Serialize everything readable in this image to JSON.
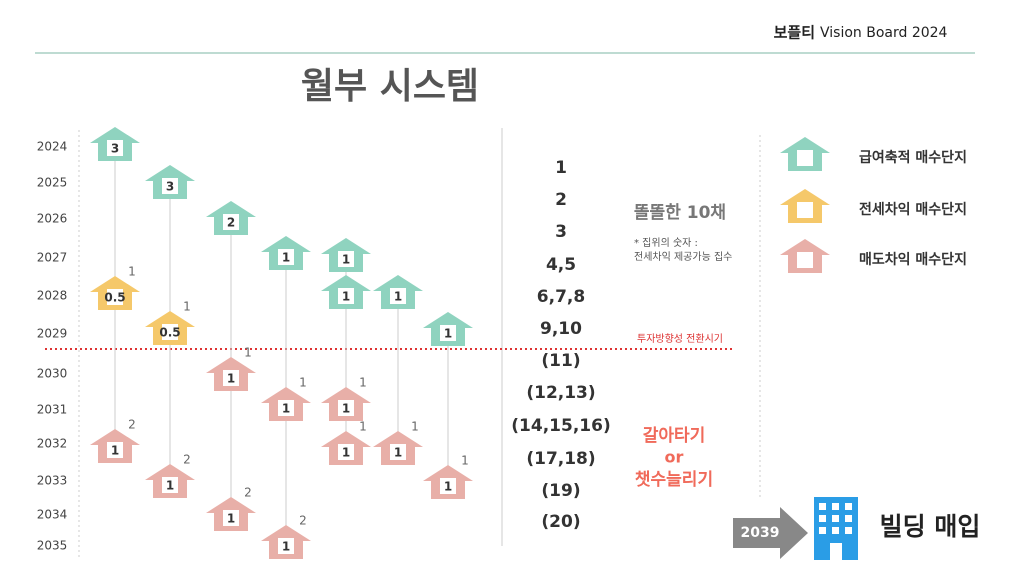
{
  "header": {
    "brand": "보플티",
    "subtitle": "Vision Board 2024"
  },
  "title": "월부 시스템",
  "years": [
    "2024",
    "2025",
    "2026",
    "2027",
    "2028",
    "2029",
    "2030",
    "2031",
    "2032",
    "2033",
    "2034",
    "2035"
  ],
  "houses": [
    {
      "label": "3",
      "color": "#8fd3bf"
    },
    {
      "label": "0.5",
      "color": "#f5c86a",
      "note": "1"
    },
    {
      "label": "1",
      "color": "#e8afa8",
      "note": "2"
    },
    {
      "label": "3",
      "color": "#8fd3bf"
    },
    {
      "label": "0.5",
      "color": "#f5c86a",
      "note": "1"
    },
    {
      "label": "1",
      "color": "#e8afa8",
      "note": "2"
    },
    {
      "label": "2",
      "color": "#8fd3bf"
    },
    {
      "label": "1",
      "color": "#e8afa8",
      "note": "1"
    },
    {
      "label": "1",
      "color": "#e8afa8",
      "note": "2"
    },
    {
      "label": "1",
      "color": "#8fd3bf"
    },
    {
      "label": "1",
      "color": "#e8afa8",
      "note": "1"
    },
    {
      "label": "1",
      "color": "#e8afa8",
      "note": "2"
    },
    {
      "label": "1",
      "color": "#8fd3bf"
    },
    {
      "label": "1",
      "color": "#8fd3bf"
    },
    {
      "label": "1",
      "color": "#e8afa8",
      "note": "1"
    },
    {
      "label": "1",
      "color": "#e8afa8",
      "note": "1"
    },
    {
      "label": "1",
      "color": "#8fd3bf"
    },
    {
      "label": "1",
      "color": "#e8afa8",
      "note": "1"
    },
    {
      "label": "1",
      "color": "#8fd3bf"
    },
    {
      "label": "1",
      "color": "#e8afa8",
      "note": "1"
    }
  ],
  "counts": [
    "1",
    "2",
    "3",
    "4,5",
    "6,7,8",
    "9,10",
    "(11)",
    "(12,13)",
    "(14,15,16)",
    "(17,18)",
    "(19)",
    "(20)"
  ],
  "notes": {
    "ten": "똘똘한 10채",
    "star1": "* 집위의 숫자 :",
    "star2": "전세차익 제공가능 집수",
    "turn": "투자방향성 전환시기",
    "swap1": "갈아타기",
    "swap2": "or",
    "swap3": "챗수늘리기"
  },
  "legend": [
    {
      "name": "급여축적 매수단지",
      "color": "#8fd3bf"
    },
    {
      "name": "전세차익 매수단지",
      "color": "#f5c86a"
    },
    {
      "name": "매도차익 매수단지",
      "color": "#e8afa8"
    }
  ],
  "goal": {
    "year": "2039",
    "text": "빌딩 매입"
  }
}
